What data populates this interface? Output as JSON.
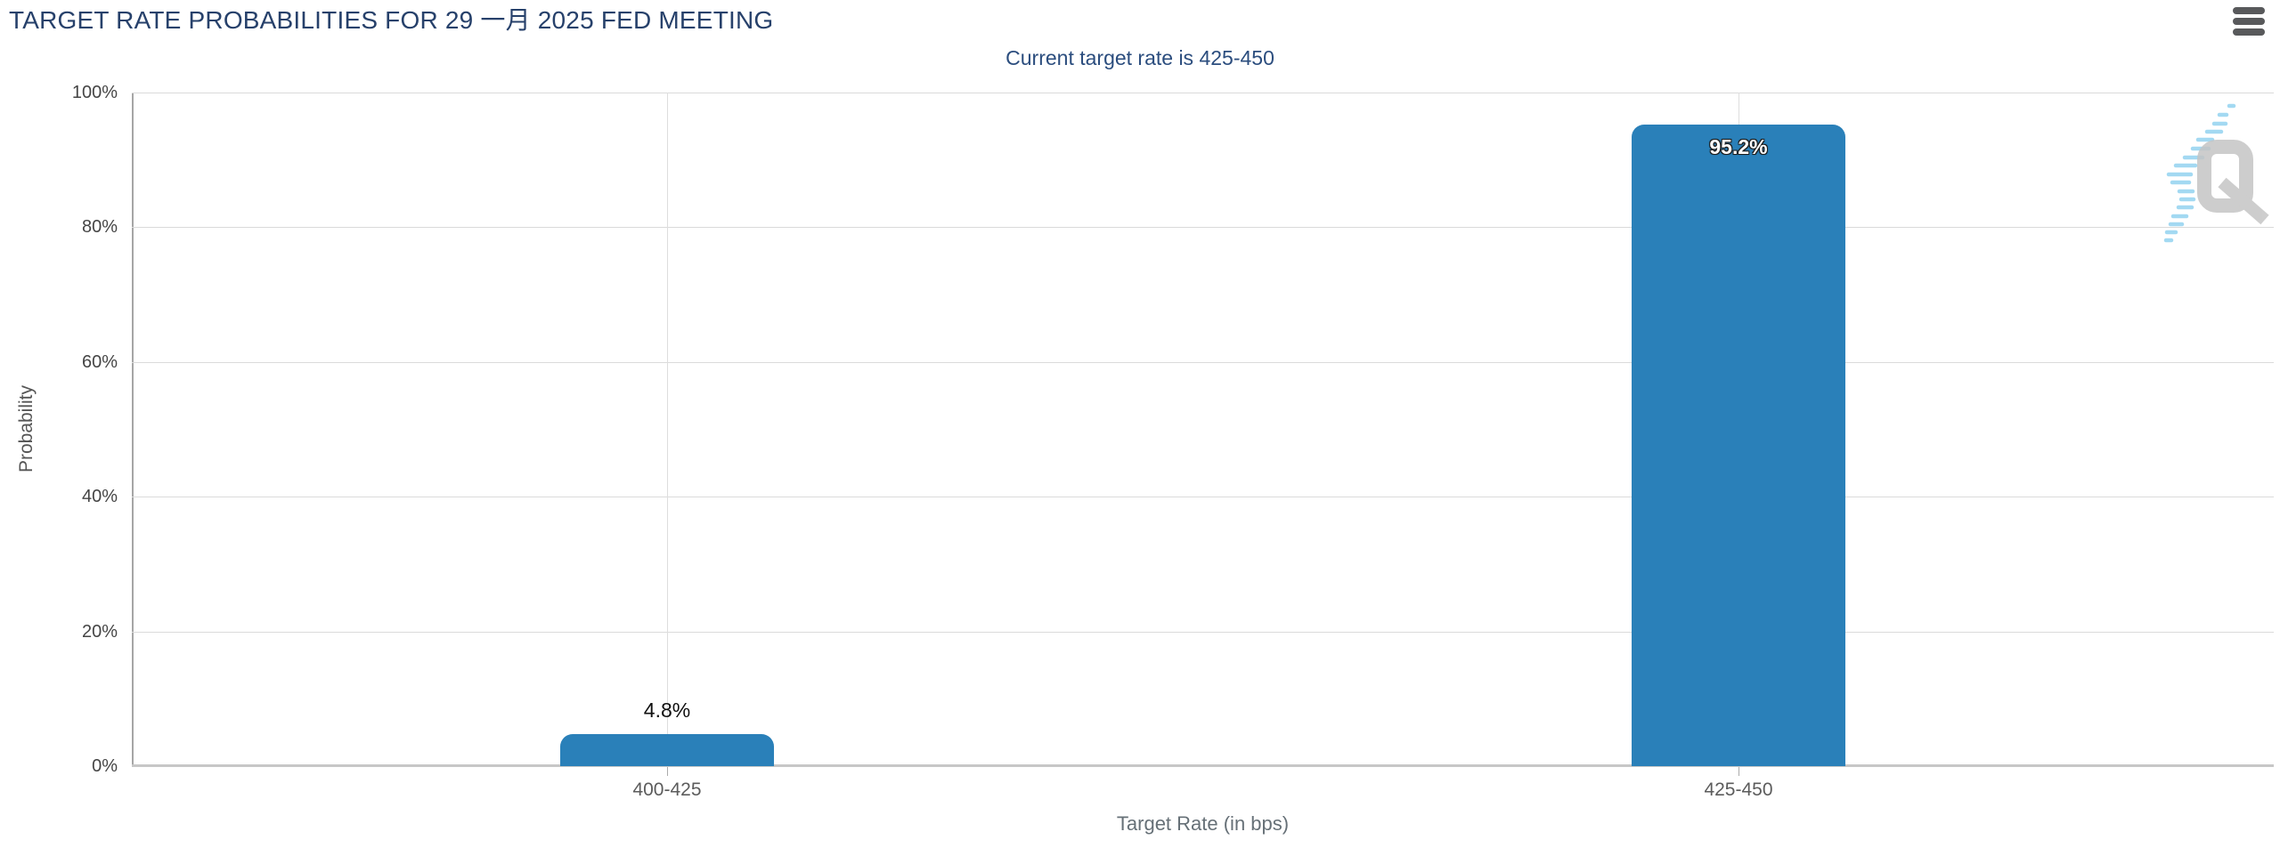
{
  "header": {
    "title": "TARGET RATE PROBABILITIES FOR 29 一月 2025 FED MEETING",
    "menu_icon": "hamburger-icon"
  },
  "chart_data": {
    "type": "bar",
    "title": "TARGET RATE PROBABILITIES FOR 29 一月 2025 FED MEETING",
    "subtitle": "Current target rate is 425-450",
    "categories": [
      "400-425",
      "425-450"
    ],
    "values": [
      4.8,
      95.2
    ],
    "value_labels": [
      "4.8%",
      "95.2%"
    ],
    "xlabel": "Target Rate (in bps)",
    "ylabel": "Probability",
    "ylim": [
      0,
      100
    ],
    "yticks": [
      0,
      20,
      40,
      60,
      80,
      100
    ],
    "ytick_labels": [
      "0%",
      "20%",
      "40%",
      "60%",
      "80%",
      "100%"
    ],
    "grid": true,
    "legend": false,
    "bar_color": "#2a80b9"
  },
  "watermark": {
    "icon": "quikstrike-q-logo",
    "letter": "Q"
  },
  "colors": {
    "title": "#27416b",
    "subtitle": "#2b4d7e",
    "bar": "#2a80b9",
    "watermark_gray": "#c5c5c5",
    "watermark_blue": "#9fd8f2"
  }
}
